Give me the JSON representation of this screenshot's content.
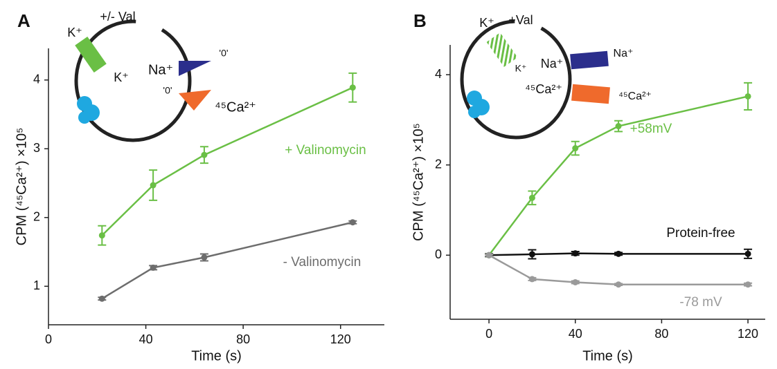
{
  "chart_data": [
    {
      "type": "line",
      "panel": "A",
      "xlabel": "Time (s)",
      "ylabel": "CPM (⁴⁵Ca²⁺) ×10⁵",
      "xlim": [
        0,
        138
      ],
      "xticks": [
        0,
        40,
        80,
        120
      ],
      "ylim": [
        0.44,
        4.46
      ],
      "yticks": [
        1,
        2,
        3,
        4
      ],
      "x": [
        22,
        43,
        64,
        125
      ],
      "series": [
        {
          "name": "+ Valinomycin",
          "color": "#6abf45",
          "values": [
            1.74,
            2.47,
            2.91,
            3.89
          ],
          "errors": [
            0.14,
            0.22,
            0.12,
            0.21
          ]
        },
        {
          "name": "- Valinomycin",
          "color": "#6d6d6d",
          "values": [
            0.82,
            1.27,
            1.42,
            1.93
          ],
          "errors": [
            0.02,
            0.03,
            0.05,
            0.02
          ]
        }
      ],
      "diagram_labels": [
        "+/- Val",
        "K⁺",
        "K⁺",
        "Na⁺",
        "'0'",
        "'0'",
        "⁴⁵Ca²⁺"
      ]
    },
    {
      "type": "line",
      "panel": "B",
      "xlabel": "Time (s)",
      "ylabel": "CPM (⁴⁵Ca²⁺) ×10⁵",
      "xlim": [
        -18,
        128
      ],
      "xticks": [
        0,
        40,
        80,
        120
      ],
      "ylim": [
        -1.42,
        4.66
      ],
      "yticks": [
        0,
        2,
        4
      ],
      "x": [
        0,
        20,
        40,
        60,
        120
      ],
      "series": [
        {
          "name": "+58mV",
          "color": "#6abf45",
          "values": [
            0,
            1.27,
            2.37,
            2.86,
            3.52
          ],
          "errors": [
            0.03,
            0.15,
            0.15,
            0.12,
            0.3
          ]
        },
        {
          "name": "Protein-free",
          "color": "#111111",
          "values": [
            0,
            0.02,
            0.04,
            0.03,
            0.03
          ],
          "errors": [
            0.03,
            0.1,
            0.04,
            0.03,
            0.1
          ]
        },
        {
          "name": "-78 mV",
          "color": "#9a9a9a",
          "values": [
            0,
            -0.53,
            -0.6,
            -0.65,
            -0.65
          ],
          "errors": [
            0.02,
            0.03,
            0.03,
            0.02,
            0.03
          ]
        }
      ],
      "diagram_labels": [
        "K⁺",
        "+Val",
        "K⁺",
        "Na⁺",
        "Na⁺",
        "⁴⁵Ca²⁺",
        "⁴⁵Ca²⁺"
      ]
    }
  ]
}
